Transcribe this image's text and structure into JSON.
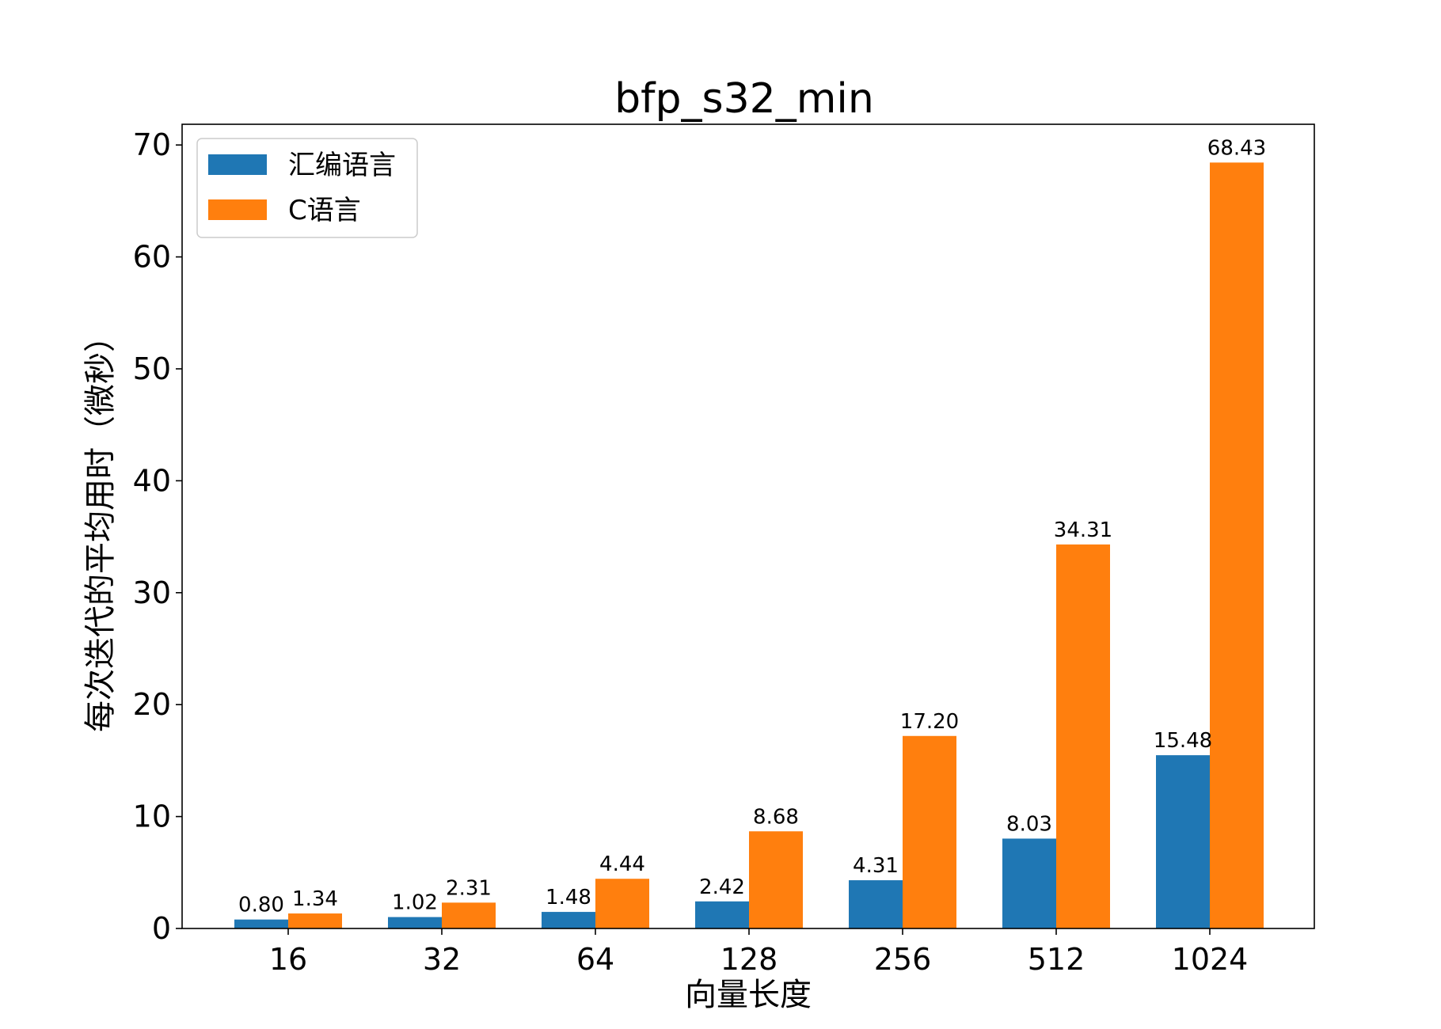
{
  "chart_data": {
    "type": "bar",
    "title": "bfp_s32_min",
    "xlabel": "向量长度",
    "ylabel": "每次迭代的平均用时（微秒）",
    "categories": [
      "16",
      "32",
      "64",
      "128",
      "256",
      "512",
      "1024"
    ],
    "series": [
      {
        "name": "汇编语言",
        "color": "#1f77b4",
        "values": [
          0.8,
          1.02,
          1.48,
          2.42,
          4.31,
          8.03,
          15.48
        ],
        "labels": [
          "0.80",
          "1.02",
          "1.48",
          "2.42",
          "4.31",
          "8.03",
          "15.48"
        ]
      },
      {
        "name": "C语言",
        "color": "#ff7f0e",
        "values": [
          1.34,
          2.31,
          4.44,
          8.68,
          17.2,
          34.31,
          68.43
        ],
        "labels": [
          "1.34",
          "2.31",
          "4.44",
          "8.68",
          "17.20",
          "34.31",
          "68.43"
        ]
      }
    ],
    "ylim": [
      0,
      71.85
    ],
    "yticks": [
      0,
      10,
      20,
      30,
      40,
      50,
      60,
      70
    ],
    "legend_position": "top-left",
    "grid": false
  }
}
